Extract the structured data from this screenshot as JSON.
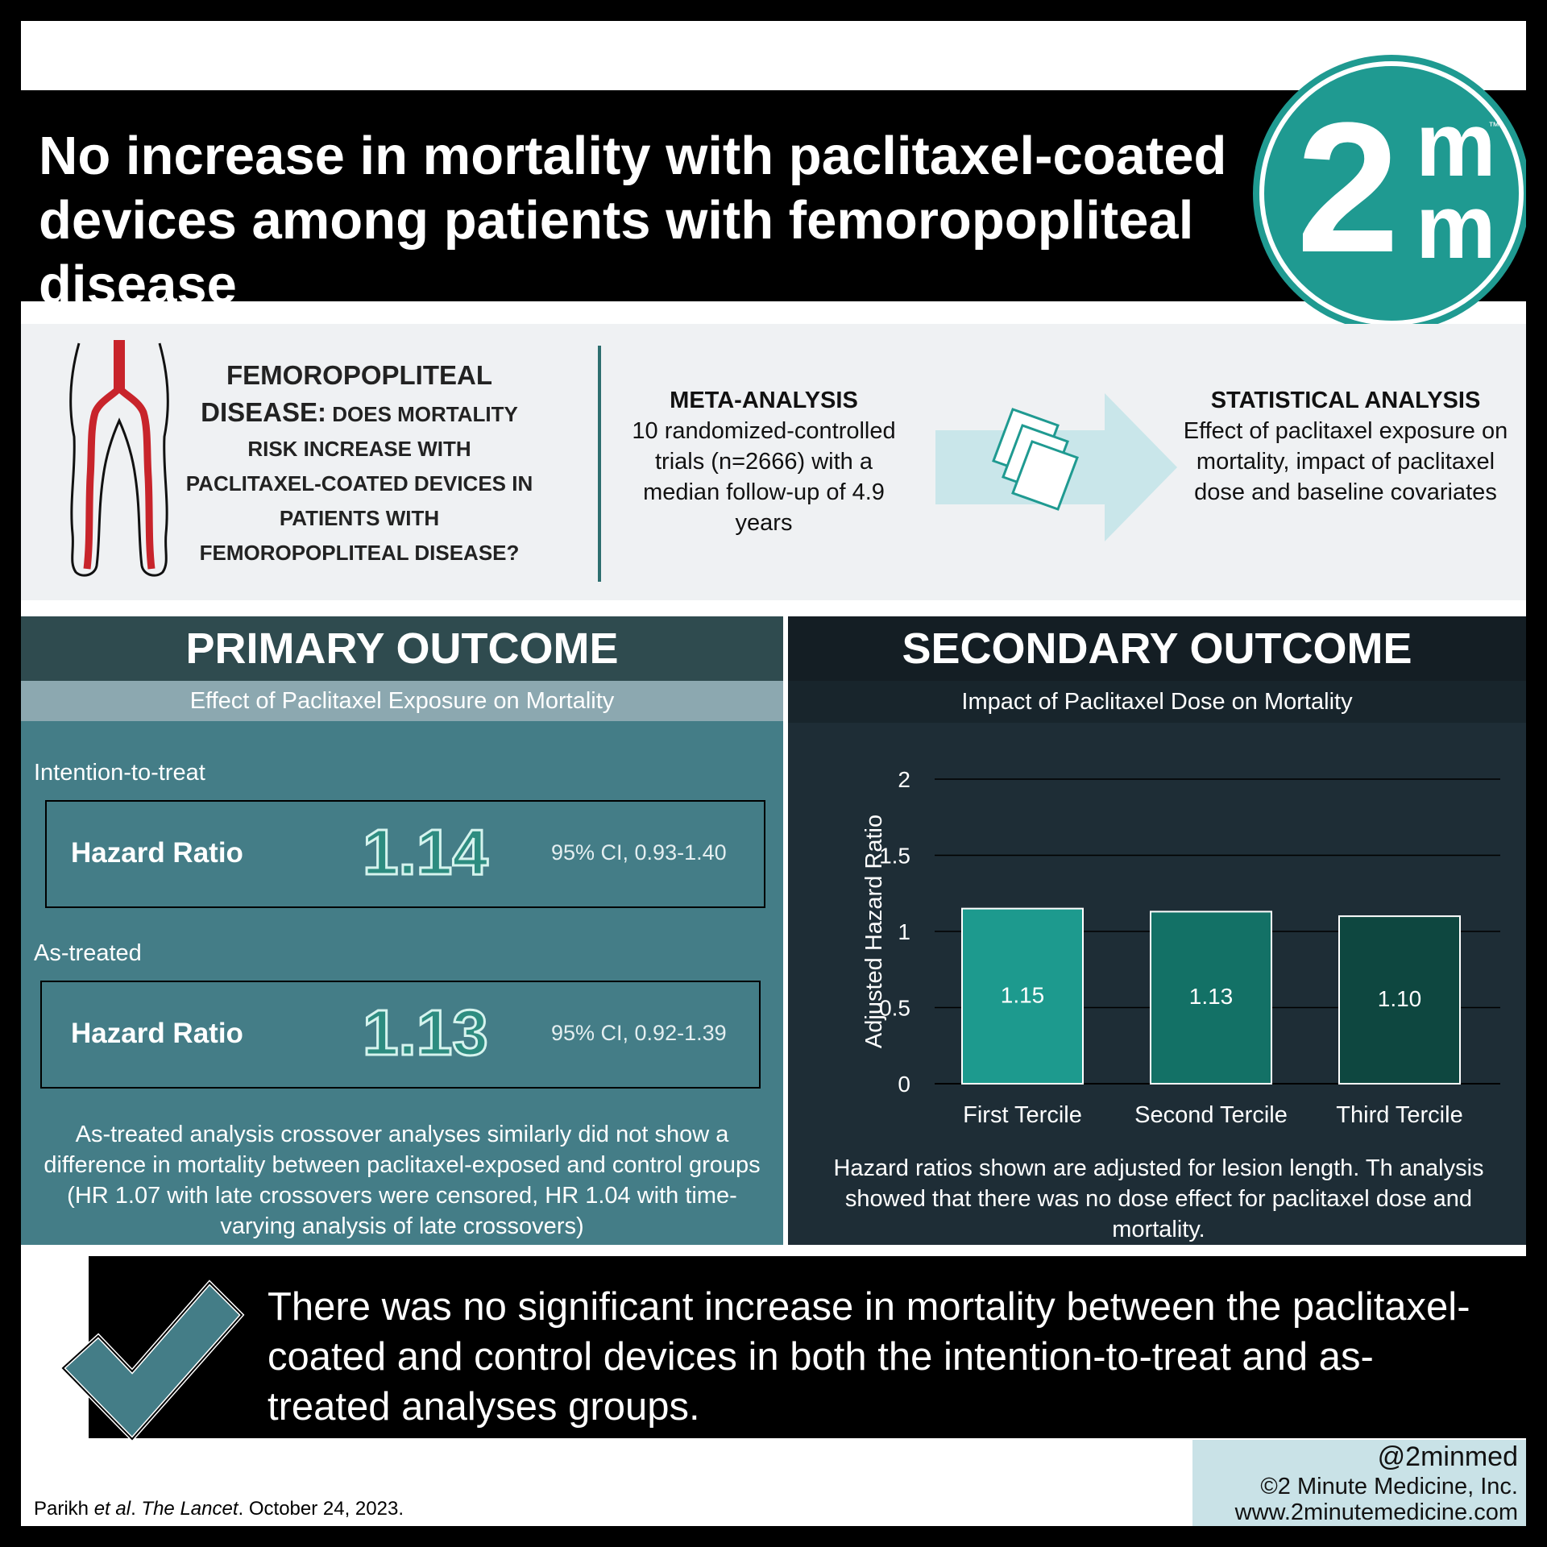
{
  "header": {
    "title": "No increase in mortality with paclitaxel-coated devices among patients with femoropopliteal disease",
    "logo_text": "2m",
    "logo_m": "m",
    "logo_tm": "™"
  },
  "question": {
    "lead": "FEMOROPOPLITEAL DISEASE:",
    "body": "DOES MORTALITY RISK INCREASE WITH PACLITAXEL-COATED DEVICES IN PATIENTS WITH FEMOROPOPLITEAL DISEASE?"
  },
  "meta_analysis": {
    "heading": "META-ANALYSIS",
    "text": "10 randomized-controlled trials (n=2666) with a median follow-up of 4.9 years"
  },
  "statistical_analysis": {
    "heading": "STATISTICAL ANALYSIS",
    "text": "Effect of paclitaxel exposure on mortality, impact of paclitaxel dose and baseline covariates"
  },
  "primary": {
    "heading": "PRIMARY OUTCOME",
    "subheading": "Effect of Paclitaxel Exposure on Mortality",
    "itt_label": "Intention-to-treat",
    "itt_hr_label": "Hazard Ratio",
    "itt_hr_value": "1.14",
    "itt_ci": "95% CI, 0.93-1.40",
    "at_label": "As-treated",
    "at_hr_label": "Hazard Ratio",
    "at_hr_value": "1.13",
    "at_ci": "95% CI, 0.92-1.39",
    "note": "As-treated analysis crossover analyses similarly did not show a difference in mortality between paclitaxel-exposed and control groups (HR 1.07 with late crossovers were censored, HR 1.04 with time-varying analysis of late crossovers)"
  },
  "secondary": {
    "heading": "SECONDARY OUTCOME",
    "subheading": "Impact of Paclitaxel Dose on Mortality",
    "note": "Hazard ratios shown are adjusted for lesion length. Th analysis showed that there was no dose effect for paclitaxel dose and mortality."
  },
  "chart_data": {
    "type": "bar",
    "title": "",
    "xlabel": "",
    "ylabel": "Adjusted Hazard Ratio",
    "categories": [
      "First Tercile",
      "Second Tercile",
      "Third Tercile"
    ],
    "values": [
      1.15,
      1.13,
      1.1
    ],
    "value_labels": [
      "1.15",
      "1.13",
      "1.10"
    ],
    "yticks": [
      "0",
      "0.5",
      "1",
      "1.5",
      "2"
    ],
    "ylim": [
      0,
      2
    ],
    "grid": true,
    "colors": [
      "#1d9a8e",
      "#137166",
      "#0e4740"
    ]
  },
  "conclusion": {
    "text": "There was no significant increase in mortality between the paclitaxel-coated and control devices in both the intention-to-treat and as-treated analyses groups."
  },
  "footer": {
    "citation_author": "Parikh ",
    "citation_etal": "et al",
    "citation_dot": ". ",
    "citation_journal": "The Lancet",
    "citation_date": ". October 24, 2023.",
    "handle": "@2minmed",
    "copyright": "©2 Minute Medicine, Inc.",
    "website": "www.2minutemedicine.com"
  },
  "colors": {
    "teal_brand": "#1f9a91",
    "primary_bg": "#447d87",
    "secondary_bg": "#1e2d36",
    "artery_red": "#c8242b"
  }
}
